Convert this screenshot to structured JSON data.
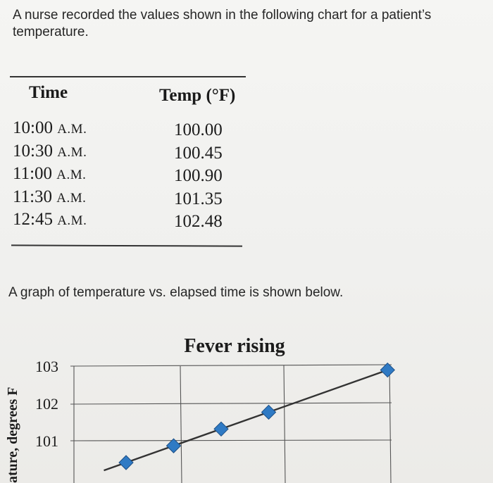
{
  "question": {
    "text": "A nurse recorded the values shown in the following chart for a patient’s temperature."
  },
  "table": {
    "headers": {
      "time": "Time",
      "temp": "Temp (°F)"
    },
    "rows": [
      {
        "time": "10:00",
        "ampm": "A.M.",
        "temp": "100.00"
      },
      {
        "time": "10:30",
        "ampm": "A.M.",
        "temp": "100.45"
      },
      {
        "time": "11:00",
        "ampm": "A.M.",
        "temp": "100.90"
      },
      {
        "time": "11:30",
        "ampm": "A.M.",
        "temp": "101.35"
      },
      {
        "time": "12:45",
        "ampm": "A.M.",
        "temp": "102.48"
      }
    ]
  },
  "caption": {
    "text": "A graph of temperature vs. elapsed time is shown below."
  },
  "chart_data": {
    "type": "line",
    "title": "Fever rising",
    "ylabel": "ature, degrees F",
    "xlabel": "",
    "yticks": [
      "103",
      "102",
      "101"
    ],
    "ylim": [
      100,
      103
    ],
    "grid": true,
    "series": [
      {
        "points": [
          {
            "x": 0,
            "y": 100.0
          },
          {
            "x": 30,
            "y": 100.45
          },
          {
            "x": 60,
            "y": 100.9
          },
          {
            "x": 90,
            "y": 101.35
          },
          {
            "x": 165,
            "y": 102.48
          }
        ],
        "line_color": "#333333",
        "marker_color": "#2f7ac4"
      }
    ]
  }
}
